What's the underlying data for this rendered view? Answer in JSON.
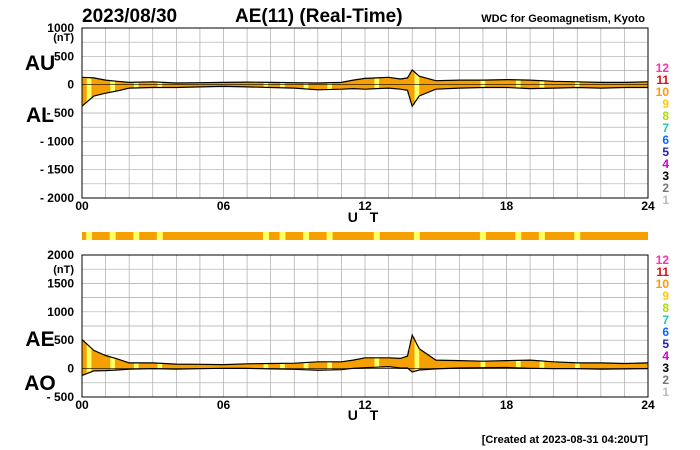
{
  "header": {
    "date": "2023/08/30",
    "title": "AE(11) (Real-Time)",
    "source": "WDC for Geomagnetism, Kyoto"
  },
  "footer": {
    "created": "[Created at 2023-08-31 04:20UT]"
  },
  "legend": {
    "levels": [
      "12",
      "11",
      "10",
      "9",
      "8",
      "7",
      "6",
      "5",
      "4",
      "3",
      "2",
      "1"
    ],
    "colors": [
      "#ff33aa",
      "#dd1111",
      "#ff9900",
      "#ffcc00",
      "#aadd00",
      "#22ccaa",
      "#1166ff",
      "#2222bb",
      "#cc00cc",
      "#000000",
      "#777777",
      "#bbbbbb"
    ]
  },
  "colors": {
    "fill": "#f5a000",
    "highlight": "#ffff66",
    "grid": "#aaaaaa",
    "curve": "#000000"
  },
  "chart_data": [
    {
      "type": "area",
      "upper_label": "AU",
      "lower_label": "AL",
      "unit": "(nT)",
      "xlabel": "U T",
      "xlim": [
        0,
        24
      ],
      "ylim": [
        -2000,
        1000
      ],
      "x_ticks": [
        "00",
        "06",
        "12",
        "18",
        "24"
      ],
      "y_ticks": [
        "1000",
        "500",
        "0",
        "- 500",
        "- 1000",
        "- 1500",
        "- 2000"
      ],
      "x": [
        0,
        0.5,
        1,
        1.5,
        2,
        3,
        4,
        5,
        6,
        7,
        8,
        9,
        10,
        11,
        11.5,
        12,
        12.5,
        13,
        13.5,
        13.8,
        14,
        14.3,
        15,
        16,
        17,
        18,
        19,
        20,
        21,
        22,
        23,
        24
      ],
      "series": [
        {
          "name": "AU",
          "values": [
            130,
            120,
            80,
            60,
            40,
            50,
            30,
            35,
            40,
            45,
            40,
            35,
            30,
            40,
            80,
            110,
            120,
            130,
            100,
            120,
            260,
            150,
            70,
            80,
            80,
            90,
            80,
            60,
            50,
            40,
            40,
            50
          ]
        },
        {
          "name": "AL",
          "values": [
            -380,
            -200,
            -150,
            -110,
            -60,
            -50,
            -50,
            -40,
            -30,
            -40,
            -50,
            -60,
            -90,
            -80,
            -70,
            -80,
            -70,
            -60,
            -80,
            -100,
            -380,
            -200,
            -80,
            -60,
            -50,
            -50,
            -70,
            -60,
            -50,
            -60,
            -50,
            -50
          ]
        }
      ]
    },
    {
      "type": "area",
      "upper_label": "AE",
      "lower_label": "AO",
      "unit": "(nT)",
      "xlabel": "U T",
      "xlim": [
        0,
        24
      ],
      "ylim": [
        -500,
        2000
      ],
      "x_ticks": [
        "00",
        "06",
        "12",
        "18",
        "24"
      ],
      "y_ticks": [
        "2000",
        "1500",
        "1000",
        "500",
        "0",
        "- 500"
      ],
      "x": [
        0,
        0.5,
        1,
        1.5,
        2,
        3,
        4,
        5,
        6,
        7,
        8,
        9,
        10,
        11,
        11.5,
        12,
        12.5,
        13,
        13.5,
        13.8,
        14,
        14.3,
        15,
        16,
        17,
        18,
        19,
        20,
        21,
        22,
        23,
        24
      ],
      "series": [
        {
          "name": "AE",
          "values": [
            510,
            320,
            230,
            170,
            100,
            100,
            80,
            75,
            70,
            85,
            90,
            95,
            120,
            120,
            150,
            190,
            190,
            190,
            180,
            220,
            590,
            350,
            150,
            140,
            130,
            140,
            150,
            120,
            100,
            100,
            90,
            100
          ]
        },
        {
          "name": "AO",
          "values": [
            -120,
            -40,
            -35,
            -25,
            -10,
            0,
            -10,
            -2,
            5,
            3,
            -5,
            -12,
            -30,
            -20,
            5,
            15,
            25,
            35,
            10,
            10,
            -60,
            -25,
            -5,
            10,
            15,
            20,
            5,
            0,
            0,
            -10,
            -5,
            0
          ]
        }
      ],
      "activity_bar": {
        "highlight_hours": [
          0.3,
          1.3,
          2.3,
          3.3,
          7.8,
          8.5,
          9.5,
          10.5,
          12.5,
          14.2,
          17.0,
          18.5,
          19.5,
          21.0
        ]
      }
    }
  ]
}
